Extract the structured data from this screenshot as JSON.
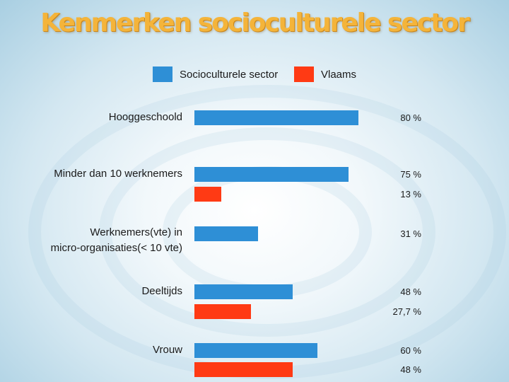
{
  "title": "Kenmerken socioculturele sector",
  "colors": {
    "series1": "#2e8fd6",
    "series2": "#ff3a14",
    "title": "#f4b43a"
  },
  "legend": [
    {
      "label": "Socioculturele sector",
      "color": "#2e8fd6"
    },
    {
      "label": "Vlaams",
      "color": "#ff3a14"
    }
  ],
  "value_labels": {
    "c0_s0": "80  %",
    "c1_s0": "75  %",
    "c1_s1": "13  %",
    "c2_s0": "31  %",
    "c3_s0": "48  %",
    "c3_s1": "27,7  %",
    "c4_s0": "60  %",
    "c4_s1": "48  %"
  },
  "chart_data": {
    "type": "bar",
    "orientation": "horizontal",
    "title": "Kenmerken socioculturele sector",
    "categories": [
      "Hooggeschoold",
      "Minder dan 10 werknemers",
      "Werknemers(vte) in micro-organisaties(< 10 vte)",
      "Deeltijds",
      "Vrouw"
    ],
    "category_lines": [
      [
        "Hooggeschoold"
      ],
      [
        "Minder dan 10 werknemers"
      ],
      [
        "Werknemers(vte) in",
        "micro-organisaties(< 10 vte)"
      ],
      [
        "Deeltijds"
      ],
      [
        "Vrouw"
      ]
    ],
    "series": [
      {
        "name": "Socioculturele sector",
        "values": [
          80,
          75,
          31,
          48,
          60
        ]
      },
      {
        "name": "Vlaams",
        "values": [
          null,
          13,
          null,
          27.7,
          48
        ]
      }
    ],
    "unit": "%",
    "legend": "top",
    "grid": false
  }
}
